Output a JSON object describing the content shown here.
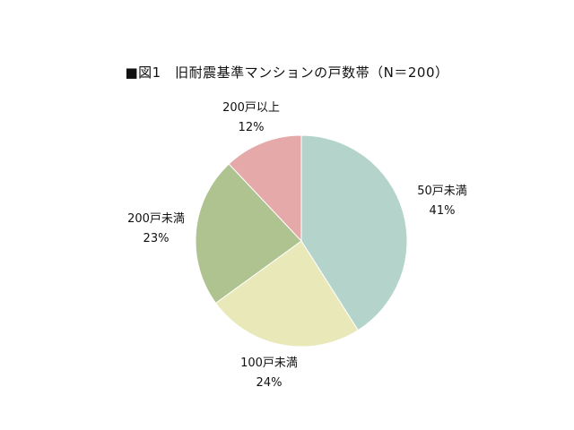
{
  "chart_data": {
    "type": "pie",
    "title": "■図1　旧耐震基準マンションの戸数帯（N＝200）",
    "categories": [
      "50戸未満",
      "100戸未満",
      "200戸未満",
      "200戸以上"
    ],
    "values": [
      41,
      24,
      23,
      12
    ],
    "value_labels": [
      "41%",
      "24%",
      "23%",
      "12%"
    ],
    "colors": [
      "#b3d3cb",
      "#e8e8b8",
      "#afc391",
      "#e4a9a8"
    ],
    "start": "12 o'clock",
    "direction": "clockwise",
    "legend": "none"
  }
}
